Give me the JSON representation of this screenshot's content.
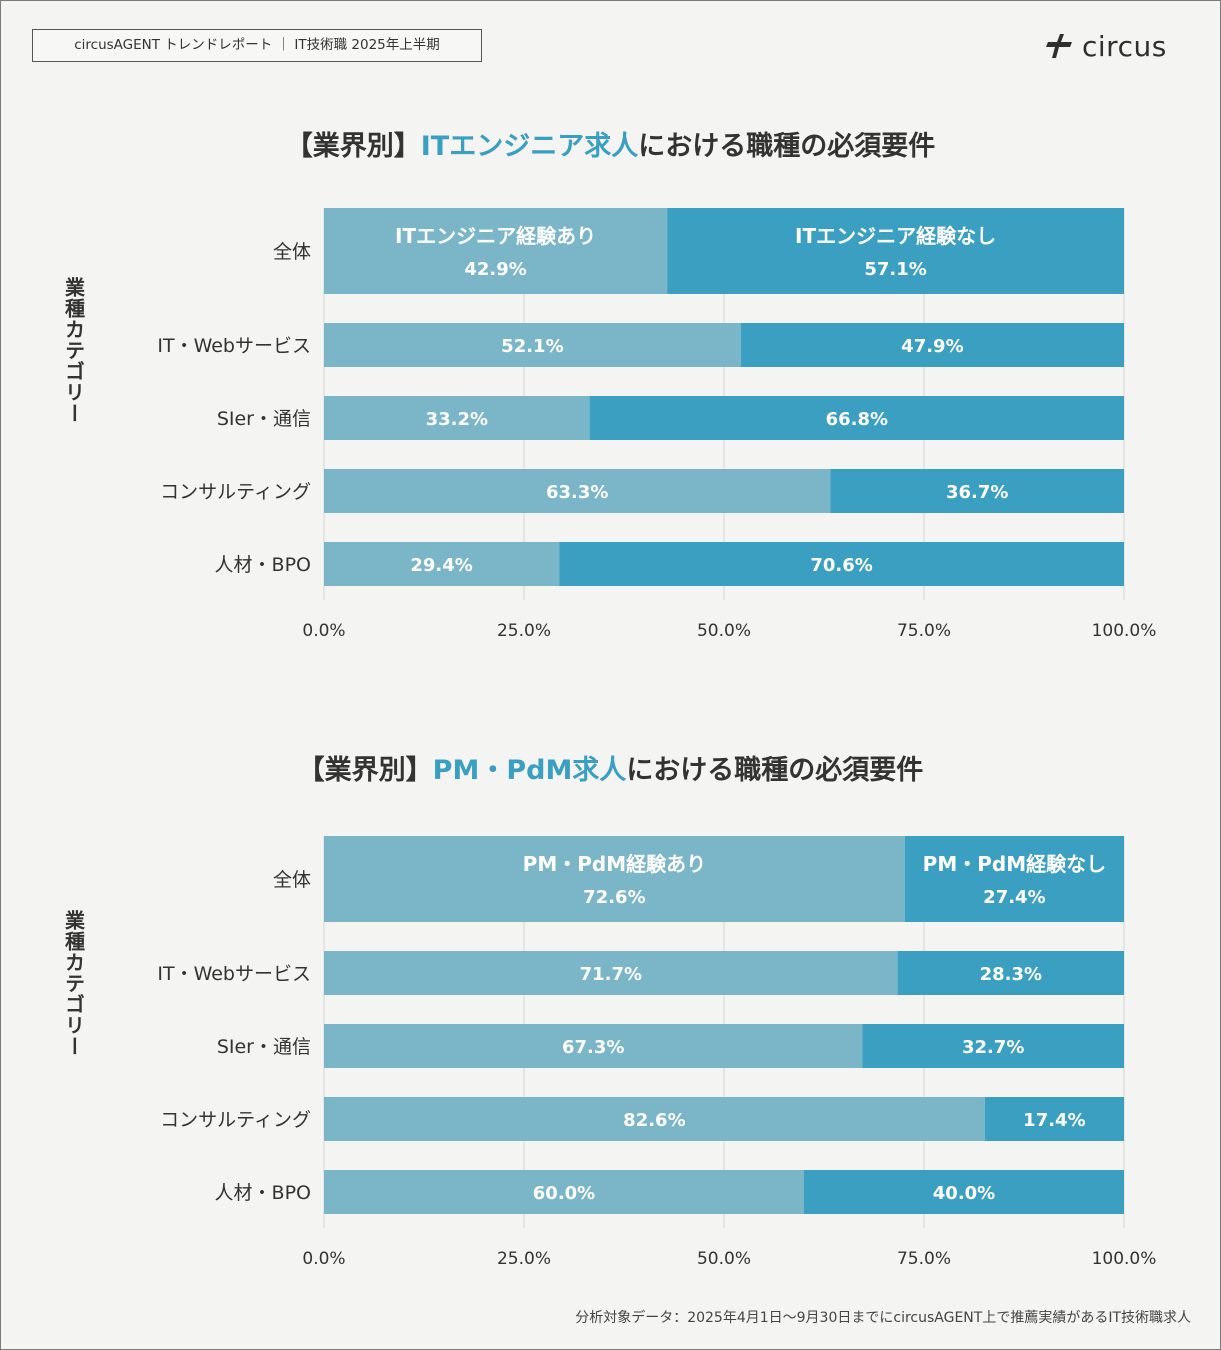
{
  "header": {
    "tag": "circusAGENT トレンドレポート ｜ IT技術職 2025年上半期",
    "logo_text": "circus"
  },
  "footnote": "分析対象データ：2025年4月1日〜9月30日までにcircusAGENT上で推薦実績があるIT技術職求人",
  "colors": {
    "light": "#7ab6c8",
    "dark": "#3a9fc1",
    "accent": "#3a9fc1",
    "text": "#333333"
  },
  "chart_data": [
    {
      "type": "bar",
      "orientation": "horizontal-stacked-100",
      "title_prefix": "【業界別】",
      "title_accent": "ITエンジニア求人",
      "title_suffix": "における職種の必須要件",
      "ylabel": "業種カテゴリー",
      "categories": [
        "全体",
        "IT・Webサービス",
        "SIer・通信",
        "コンサルティング",
        "人材・BPO"
      ],
      "series": [
        {
          "name": "ITエンジニア経験あり",
          "values": [
            42.9,
            52.1,
            33.2,
            63.3,
            29.4
          ]
        },
        {
          "name": "ITエンジニア経験なし",
          "values": [
            57.1,
            47.9,
            66.8,
            36.7,
            70.6
          ]
        }
      ],
      "xticks": [
        "0.0%",
        "25.0%",
        "50.0%",
        "75.0%",
        "100.0%"
      ],
      "xlim": [
        0,
        100
      ]
    },
    {
      "type": "bar",
      "orientation": "horizontal-stacked-100",
      "title_prefix": "【業界別】",
      "title_accent": "PM・PdM求人",
      "title_suffix": "における職種の必須要件",
      "ylabel": "業種カテゴリー",
      "categories": [
        "全体",
        "IT・Webサービス",
        "SIer・通信",
        "コンサルティング",
        "人材・BPO"
      ],
      "series": [
        {
          "name": "PM・PdM経験あり",
          "values": [
            72.6,
            71.7,
            67.3,
            82.6,
            60.0
          ]
        },
        {
          "name": "PM・PdM経験なし",
          "values": [
            27.4,
            28.3,
            32.7,
            17.4,
            40.0
          ]
        }
      ],
      "xticks": [
        "0.0%",
        "25.0%",
        "50.0%",
        "75.0%",
        "100.0%"
      ],
      "xlim": [
        0,
        100
      ]
    }
  ]
}
